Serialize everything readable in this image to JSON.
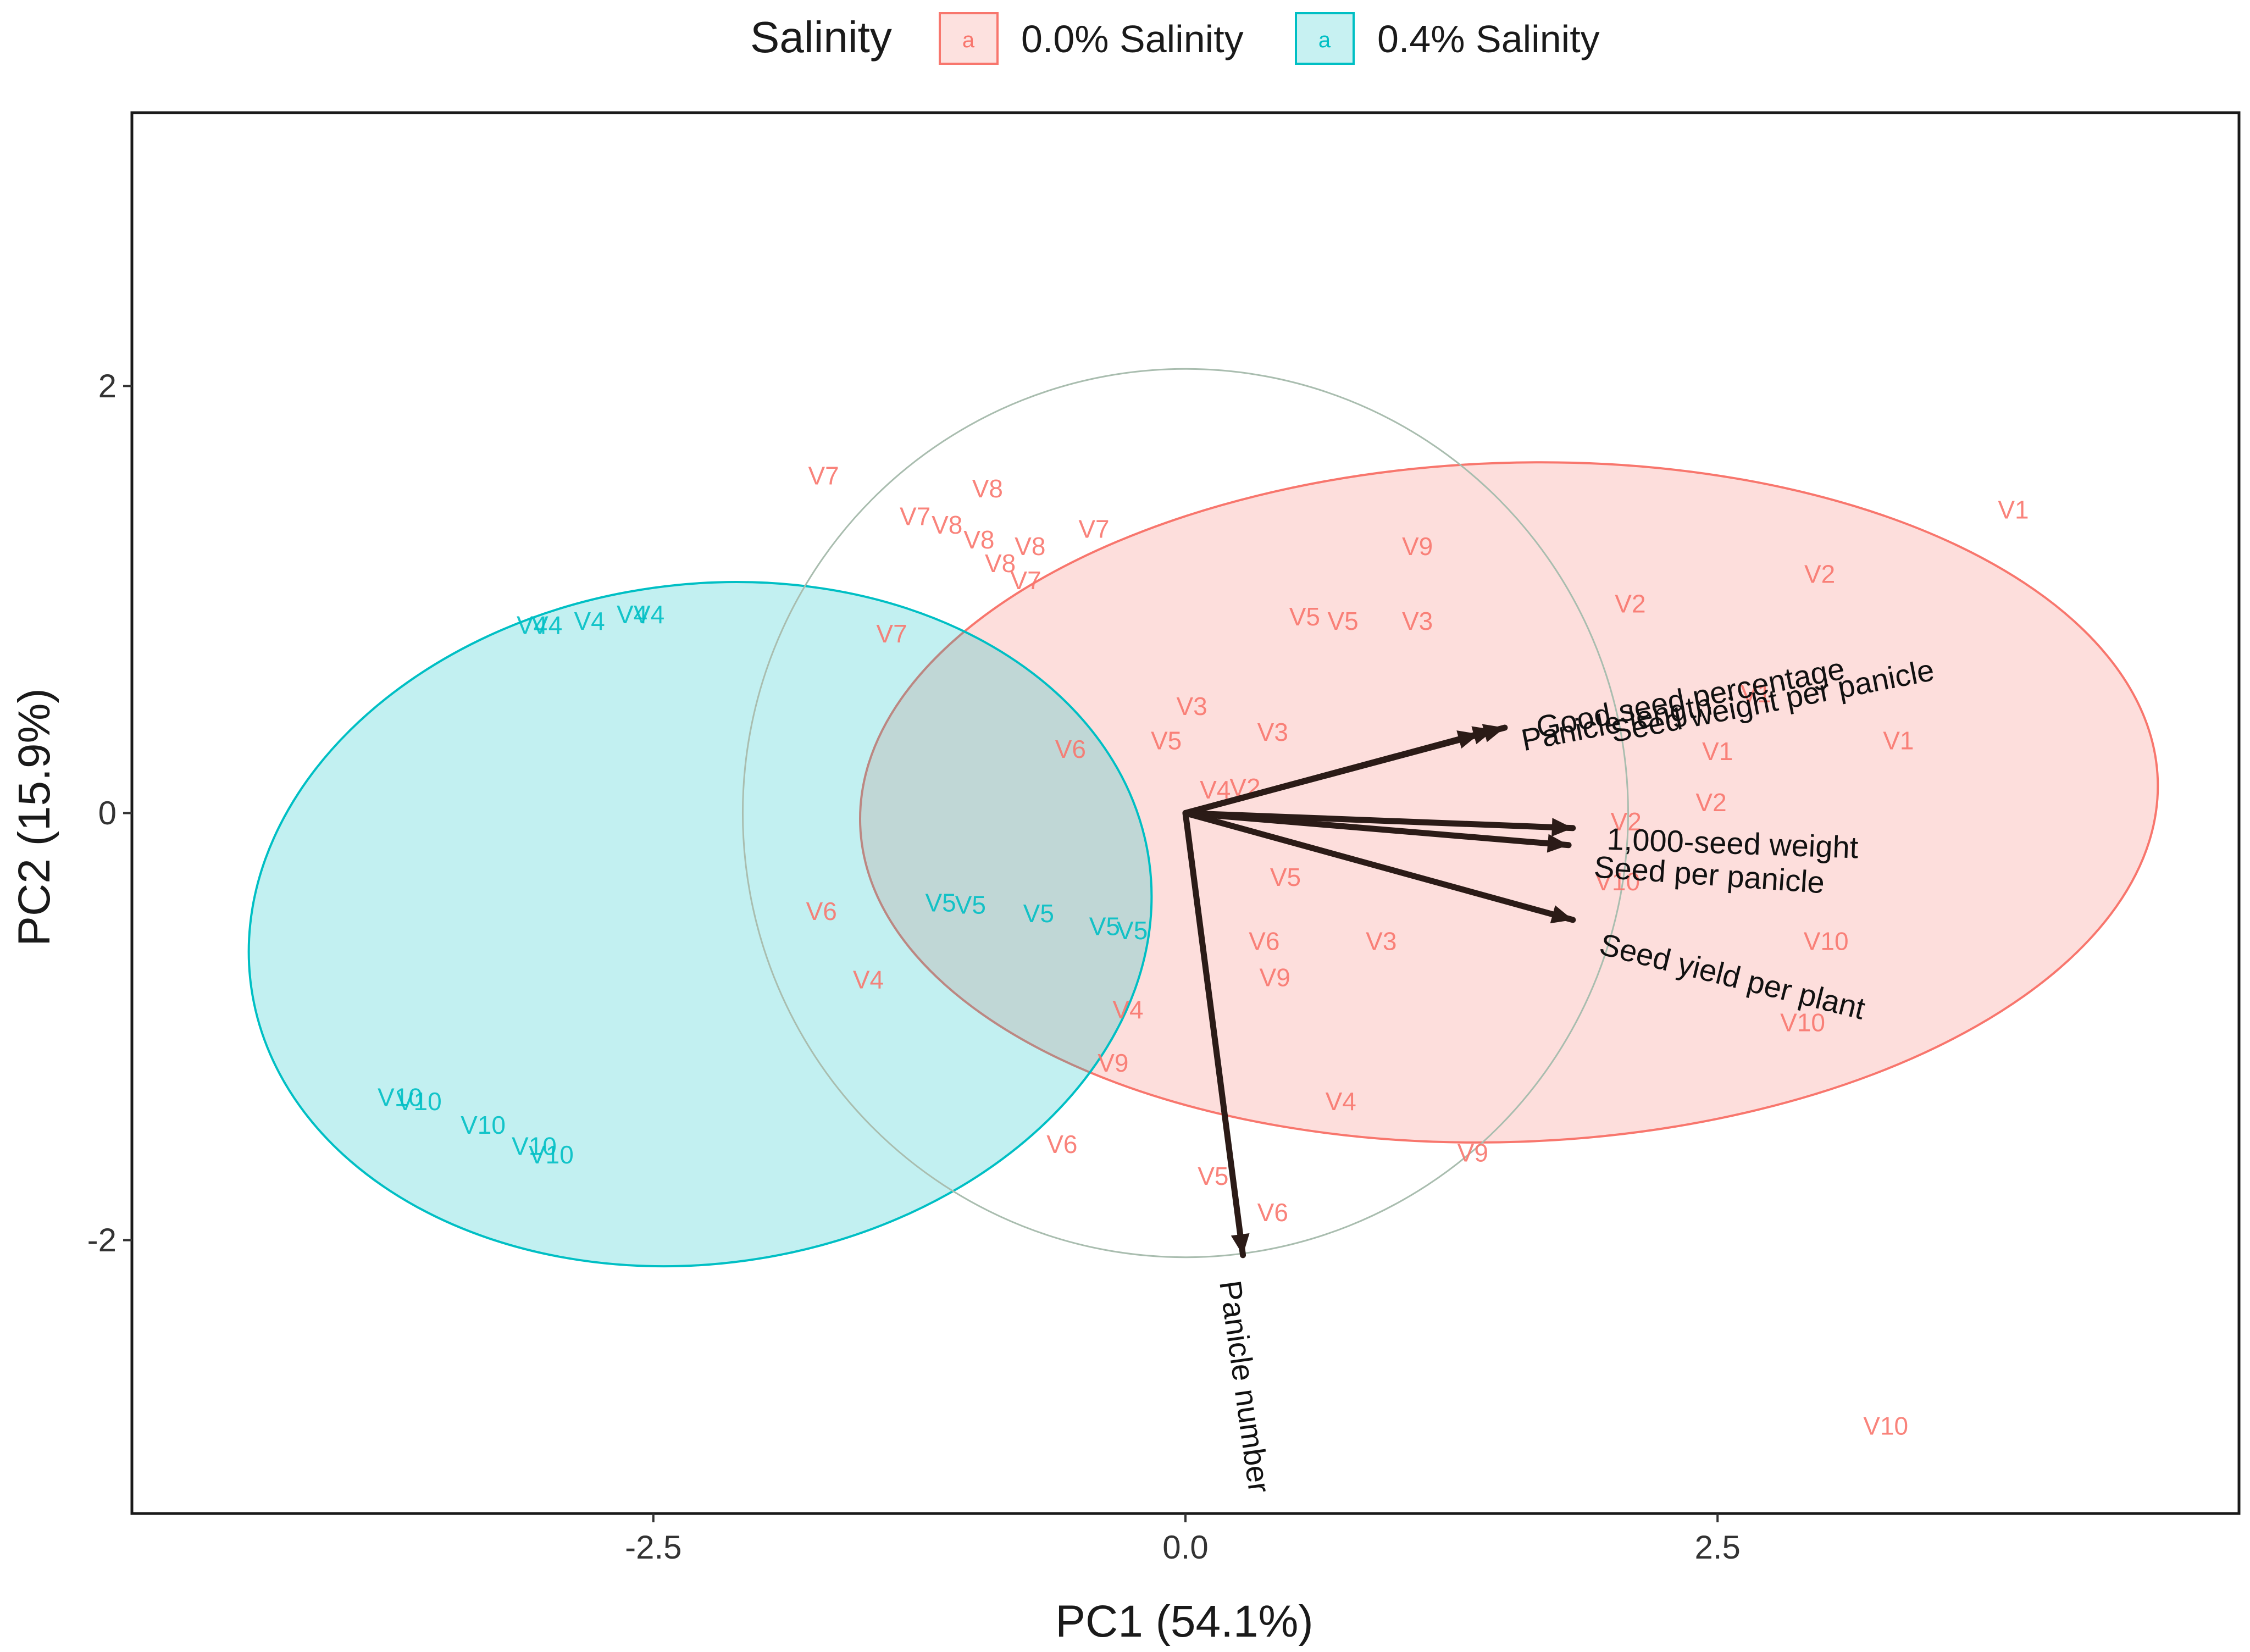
{
  "chart_data": {
    "type": "scatter",
    "subtype": "pca-biplot",
    "xlabel": "PC1 (54.1%)",
    "ylabel": "PC2 (15.9%)",
    "xlim": [
      -4.95,
      4.95
    ],
    "ylim": [
      -3.28,
      3.28
    ],
    "xticks": [
      -2.5,
      0.0,
      2.5
    ],
    "xtick_labels": [
      "-2.5",
      "0.0",
      "2.5"
    ],
    "yticks": [
      -2,
      0,
      2
    ],
    "ytick_labels": [
      "-2",
      "0",
      "2"
    ],
    "legend": {
      "title": "Salinity",
      "position": "top",
      "key_glyph": "a",
      "entries": [
        {
          "name": "0.0% Salinity",
          "color": "#F8766D"
        },
        {
          "name": "0.4% Salinity",
          "color": "#00BFC4"
        }
      ]
    },
    "colors": {
      "group1": "#F8766D",
      "group2": "#00BFC4",
      "arrow": "#2B1B17",
      "circle": "#A9BDAF"
    },
    "correlation_circle": {
      "center": [
        0,
        0
      ],
      "radius": 2.08
    },
    "series": [
      {
        "name": "0.0% Salinity",
        "ellipse": {
          "cx": 1.52,
          "cy": 0.05,
          "rx": 3.05,
          "ry": 1.59,
          "angle_deg": -2
        },
        "points": [
          {
            "label": "V7",
            "x": -1.7,
            "y": 1.58
          },
          {
            "label": "V8",
            "x": -0.93,
            "y": 1.52
          },
          {
            "label": "V7",
            "x": -1.27,
            "y": 1.39
          },
          {
            "label": "V8",
            "x": -1.12,
            "y": 1.35
          },
          {
            "label": "V8",
            "x": -0.97,
            "y": 1.28
          },
          {
            "label": "V8",
            "x": -0.73,
            "y": 1.25
          },
          {
            "label": "V7",
            "x": -0.43,
            "y": 1.33
          },
          {
            "label": "V8",
            "x": -0.87,
            "y": 1.17
          },
          {
            "label": "V7",
            "x": -0.75,
            "y": 1.09
          },
          {
            "label": "V9",
            "x": 1.09,
            "y": 1.25
          },
          {
            "label": "V1",
            "x": 3.89,
            "y": 1.42
          },
          {
            "label": "V2",
            "x": 2.98,
            "y": 1.12
          },
          {
            "label": "V2",
            "x": 2.09,
            "y": 0.98
          },
          {
            "label": "V5",
            "x": 0.56,
            "y": 0.92
          },
          {
            "label": "V5",
            "x": 0.74,
            "y": 0.9
          },
          {
            "label": "V3",
            "x": 1.09,
            "y": 0.9
          },
          {
            "label": "V7",
            "x": -1.38,
            "y": 0.84
          },
          {
            "label": "V3",
            "x": 0.03,
            "y": 0.5
          },
          {
            "label": "V3",
            "x": 0.41,
            "y": 0.38
          },
          {
            "label": "V5",
            "x": -0.09,
            "y": 0.34
          },
          {
            "label": "V6",
            "x": -0.54,
            "y": 0.3
          },
          {
            "label": "V1",
            "x": 2.68,
            "y": 0.56
          },
          {
            "label": "V1",
            "x": 3.35,
            "y": 0.34
          },
          {
            "label": "V1",
            "x": 2.5,
            "y": 0.29
          },
          {
            "label": "V2",
            "x": 2.47,
            "y": 0.05
          },
          {
            "label": "V2",
            "x": 2.07,
            "y": -0.04
          },
          {
            "label": "V10",
            "x": 2.03,
            "y": -0.32
          },
          {
            "label": "V4",
            "x": 0.14,
            "y": 0.11
          },
          {
            "label": "V2",
            "x": 0.28,
            "y": 0.12
          },
          {
            "label": "V5",
            "x": 0.47,
            "y": -0.3
          },
          {
            "label": "V6",
            "x": -1.71,
            "y": -0.46
          },
          {
            "label": "V6",
            "x": 0.37,
            "y": -0.6
          },
          {
            "label": "V3",
            "x": 0.92,
            "y": -0.6
          },
          {
            "label": "V9",
            "x": 0.42,
            "y": -0.77
          },
          {
            "label": "V4",
            "x": -1.49,
            "y": -0.78
          },
          {
            "label": "V4",
            "x": -0.27,
            "y": -0.92
          },
          {
            "label": "V9",
            "x": -0.34,
            "y": -1.17
          },
          {
            "label": "V10",
            "x": 3.01,
            "y": -0.6
          },
          {
            "label": "V10",
            "x": 2.9,
            "y": -0.98
          },
          {
            "label": "V4",
            "x": 0.73,
            "y": -1.35
          },
          {
            "label": "V6",
            "x": -0.58,
            "y": -1.55
          },
          {
            "label": "V9",
            "x": 1.35,
            "y": -1.59
          },
          {
            "label": "V5",
            "x": 0.13,
            "y": -1.7
          },
          {
            "label": "V6",
            "x": 0.41,
            "y": -1.87
          },
          {
            "label": "V10",
            "x": 3.29,
            "y": -2.87
          }
        ]
      },
      {
        "name": "0.4% Salinity",
        "ellipse": {
          "cx": -2.28,
          "cy": -0.52,
          "rx": 2.13,
          "ry": 1.59,
          "angle_deg": -8
        },
        "points": [
          {
            "label": "V4",
            "x": -3.07,
            "y": 0.88
          },
          {
            "label": "V4",
            "x": -3.0,
            "y": 0.88
          },
          {
            "label": "V4",
            "x": -2.8,
            "y": 0.9
          },
          {
            "label": "V4",
            "x": -2.6,
            "y": 0.93
          },
          {
            "label": "V4",
            "x": -2.52,
            "y": 0.93
          },
          {
            "label": "V5",
            "x": -1.15,
            "y": -0.42
          },
          {
            "label": "V5",
            "x": -1.01,
            "y": -0.43
          },
          {
            "label": "V5",
            "x": -0.69,
            "y": -0.47
          },
          {
            "label": "V5",
            "x": -0.38,
            "y": -0.53
          },
          {
            "label": "V5",
            "x": -0.25,
            "y": -0.55
          },
          {
            "label": "V10",
            "x": -3.69,
            "y": -1.33
          },
          {
            "label": "V10",
            "x": -3.6,
            "y": -1.35
          },
          {
            "label": "V10",
            "x": -3.3,
            "y": -1.46
          },
          {
            "label": "V10",
            "x": -3.06,
            "y": -1.56
          },
          {
            "label": "V10",
            "x": -2.98,
            "y": -1.6
          }
        ]
      }
    ],
    "loadings": [
      {
        "name": "Good seed percentage",
        "x": 1.45,
        "y": 0.39,
        "label_x": 1.65,
        "label_y": 0.4,
        "label_angle_deg": -11
      },
      {
        "name": "Panicle length",
        "x": 1.38,
        "y": 0.37,
        "label_x": 1.58,
        "label_y": 0.34,
        "label_angle_deg": -11
      },
      {
        "name": "Seed weight per panicle",
        "x": 1.5,
        "y": 0.4,
        "label_x": 2.0,
        "label_y": 0.38,
        "label_angle_deg": -11
      },
      {
        "name": "1,000-seed weight",
        "x": 1.82,
        "y": -0.07,
        "label_x": 1.98,
        "label_y": -0.12,
        "label_angle_deg": 2
      },
      {
        "name": "Seed per panicle",
        "x": 1.8,
        "y": -0.15,
        "label_x": 1.92,
        "label_y": -0.25,
        "label_angle_deg": 4
      },
      {
        "name": "Seed yield per plant",
        "x": 1.82,
        "y": -0.5,
        "label_x": 1.95,
        "label_y": -0.61,
        "label_angle_deg": 14
      },
      {
        "name": "Panicle number",
        "x": 0.27,
        "y": -2.07,
        "label_x": 0.21,
        "label_y": -2.19,
        "label_angle_deg": 82
      }
    ]
  }
}
